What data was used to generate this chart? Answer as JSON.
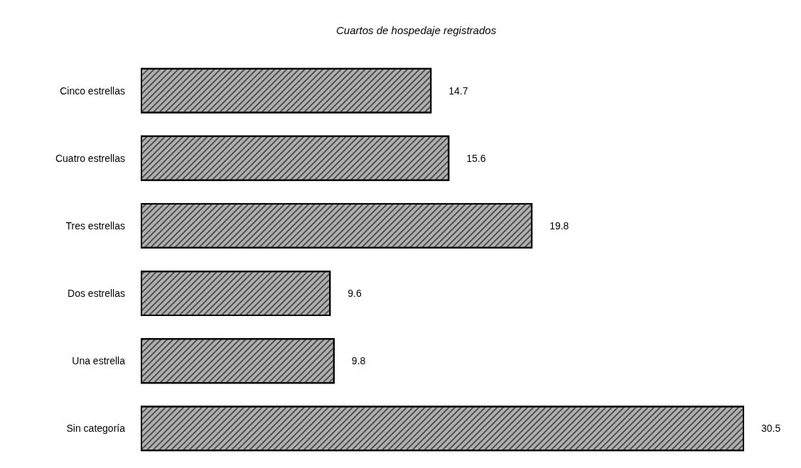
{
  "chart_data": {
    "type": "bar",
    "orientation": "horizontal",
    "title": "Cuartos de hospedaje registrados",
    "categories": [
      "Cinco estrellas",
      "Cuatro estrellas",
      "Tres estrellas",
      "Dos estrellas",
      "Una estrella",
      "Sin categoría"
    ],
    "values": [
      14.7,
      15.6,
      19.8,
      9.6,
      9.8,
      30.5
    ],
    "color": "#b0b0b0",
    "data_labels": true
  }
}
